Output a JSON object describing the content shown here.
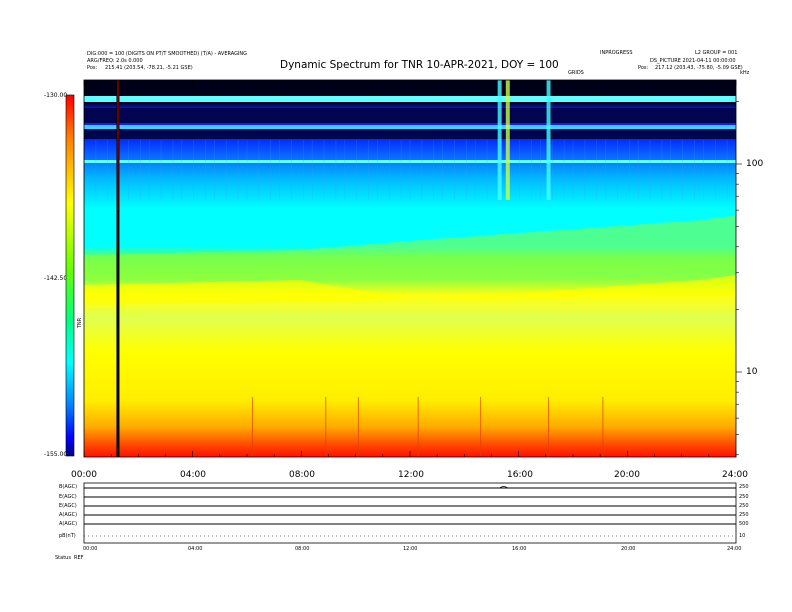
{
  "header": {
    "left_lines": [
      "DIG:000 = 100 (DIGITS ON PT/T SMOOTHED) (T/A) - AVERAGING",
      "ARG/FREQ: 2.0s 0.000"
    ],
    "left_pos_label": "Pos:",
    "left_pos_value": "215.41 (203.54, -78.21, -5.21 GSE)",
    "right_lines": [
      "INPROGRESS",
      "L2 GROUP = 001"
    ],
    "right_product": "DS_PICTURE 2021-04-11 00:00:00",
    "right_pos_label": "Pos:",
    "right_pos_value": "217.12 (203.43, -75.80, -5.09 GSE)",
    "units_label": "GRIDS",
    "corner_label": "kHz"
  },
  "chart_data": {
    "type": "heatmap",
    "title": "Dynamic Spectrum for TNR 10-APR-2021, DOY = 100",
    "colorbar": {
      "ticks": [
        "-130.00",
        "-142.50",
        "-155.00"
      ],
      "range": [
        -155,
        -130
      ],
      "label": "TNR",
      "colors": [
        "#000080",
        "#0000ff",
        "#0080ff",
        "#00ffff",
        "#00ff80",
        "#80ff00",
        "#ffff00",
        "#ff8000",
        "#ff0000"
      ]
    },
    "x_ticks": [
      "00:00",
      "04:00",
      "08:00",
      "12:00",
      "16:00",
      "20:00",
      "24:00"
    ],
    "xlim_hours": [
      0,
      24
    ],
    "y_scale": "log",
    "y_ticks": [
      "100",
      "10"
    ],
    "bands_top_to_bottom": [
      {
        "level": "dark",
        "color": "#000033"
      },
      {
        "level": "blue",
        "color": "#1a2bff"
      },
      {
        "level": "light-blue",
        "color": "#1080ff"
      },
      {
        "level": "cyan",
        "color": "#00ffff"
      },
      {
        "level": "green",
        "color": "#66ff55"
      },
      {
        "level": "yellow-green",
        "color": "#b8ff40"
      },
      {
        "level": "yellow",
        "color": "#ffff00"
      },
      {
        "level": "orange",
        "color": "#ffa500"
      },
      {
        "level": "red",
        "color": "#ff1a00"
      }
    ],
    "vertical_lines_hours": [
      1.25
    ],
    "burst_hours": [
      15.3,
      15.6,
      17.1
    ]
  },
  "panel": {
    "rows": [
      {
        "label": "B(AGC)",
        "right": "250"
      },
      {
        "label": "E(AGC)",
        "right": "250"
      },
      {
        "label": "E(AGC)",
        "right": "250"
      },
      {
        "label": "A(AGC)",
        "right": "250"
      },
      {
        "label": "A(AGC)",
        "right": "500"
      },
      {
        "label": "pB(nT)",
        "right": "10"
      }
    ],
    "x_ticks": [
      "00:00",
      "04:00",
      "08:00",
      "12:00",
      "16:00",
      "20:00",
      "24:00"
    ],
    "footer_label": "Status",
    "footer_value": "REF"
  }
}
